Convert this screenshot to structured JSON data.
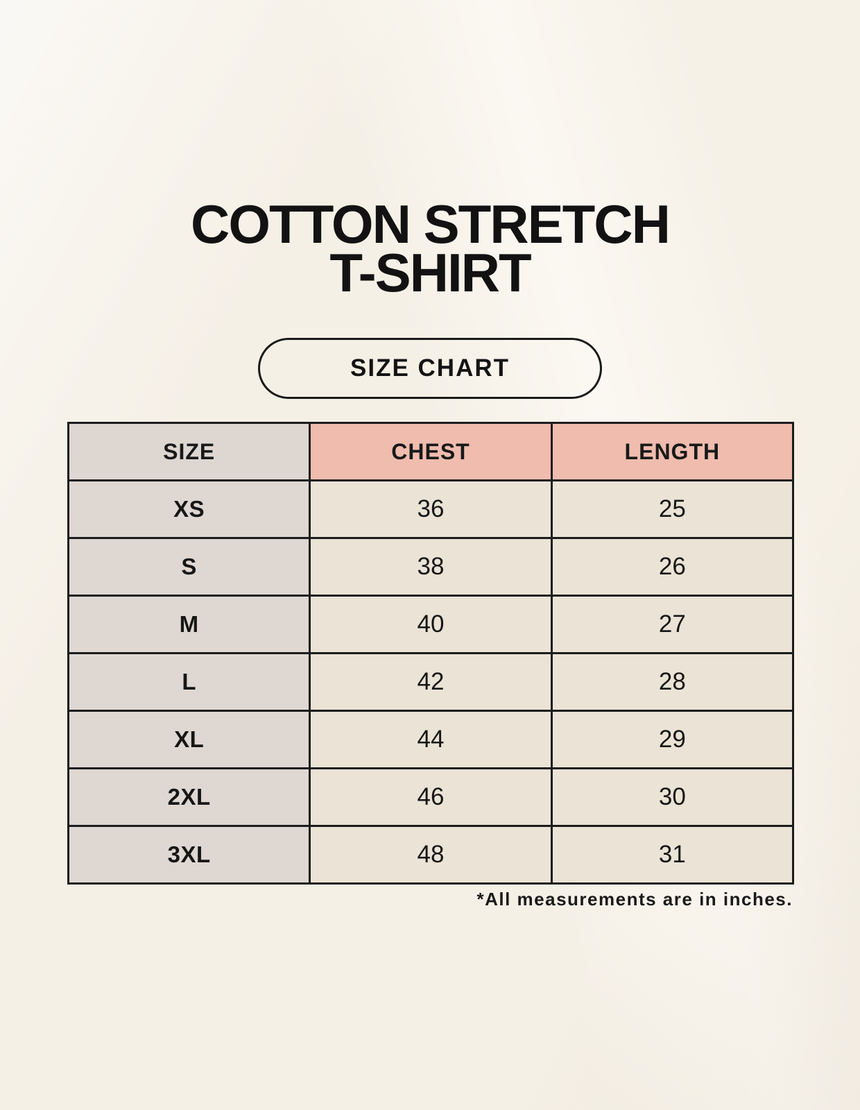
{
  "title": {
    "line1": "COTTON STRETCH",
    "line2": "T-SHIRT"
  },
  "pill": {
    "label": "SIZE CHART"
  },
  "table": {
    "columns": [
      "SIZE",
      "CHEST",
      "LENGTH"
    ],
    "rows": [
      {
        "size": "XS",
        "chest": "36",
        "length": "25"
      },
      {
        "size": "S",
        "chest": "38",
        "length": "26"
      },
      {
        "size": "M",
        "chest": "40",
        "length": "27"
      },
      {
        "size": "L",
        "chest": "42",
        "length": "28"
      },
      {
        "size": "XL",
        "chest": "44",
        "length": "29"
      },
      {
        "size": "2XL",
        "chest": "46",
        "length": "30"
      },
      {
        "size": "3XL",
        "chest": "48",
        "length": "31"
      }
    ]
  },
  "footnote": "*All measurements are in inches.",
  "chart_data": {
    "type": "table",
    "title": "COTTON STRETCH T-SHIRT — SIZE CHART",
    "columns": [
      "SIZE",
      "CHEST",
      "LENGTH"
    ],
    "rows": [
      [
        "XS",
        36,
        25
      ],
      [
        "S",
        38,
        26
      ],
      [
        "M",
        40,
        27
      ],
      [
        "L",
        42,
        28
      ],
      [
        "XL",
        44,
        29
      ],
      [
        "2XL",
        46,
        30
      ],
      [
        "3XL",
        48,
        31
      ]
    ],
    "note": "*All measurements are in inches.",
    "units": "inches"
  },
  "colors": {
    "background": "#f9f5ec",
    "header_accent_pink": "#efbcae",
    "size_column_gray": "#ded7d2",
    "value_cell_beige": "#eae3d6",
    "border": "#1c1c1c",
    "text": "#161616"
  }
}
